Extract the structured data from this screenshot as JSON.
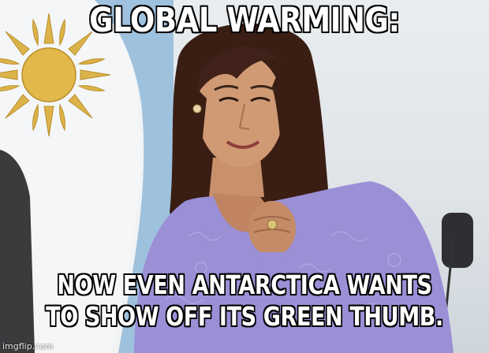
{
  "meme": {
    "top_text": "GLOBAL WARMING:",
    "bottom_line_1": "NOW EVEN ANTARCTICA WANTS",
    "bottom_line_2": "TO SHOW OFF ITS GREEN THUMB.",
    "watermark": "imgflip.com"
  },
  "colors": {
    "caption_fill": "#ffffff",
    "caption_outline": "#000000",
    "dress": "#9b8fd6",
    "flag_blue": "#8fb7d9",
    "sun": "#e1b23f"
  }
}
